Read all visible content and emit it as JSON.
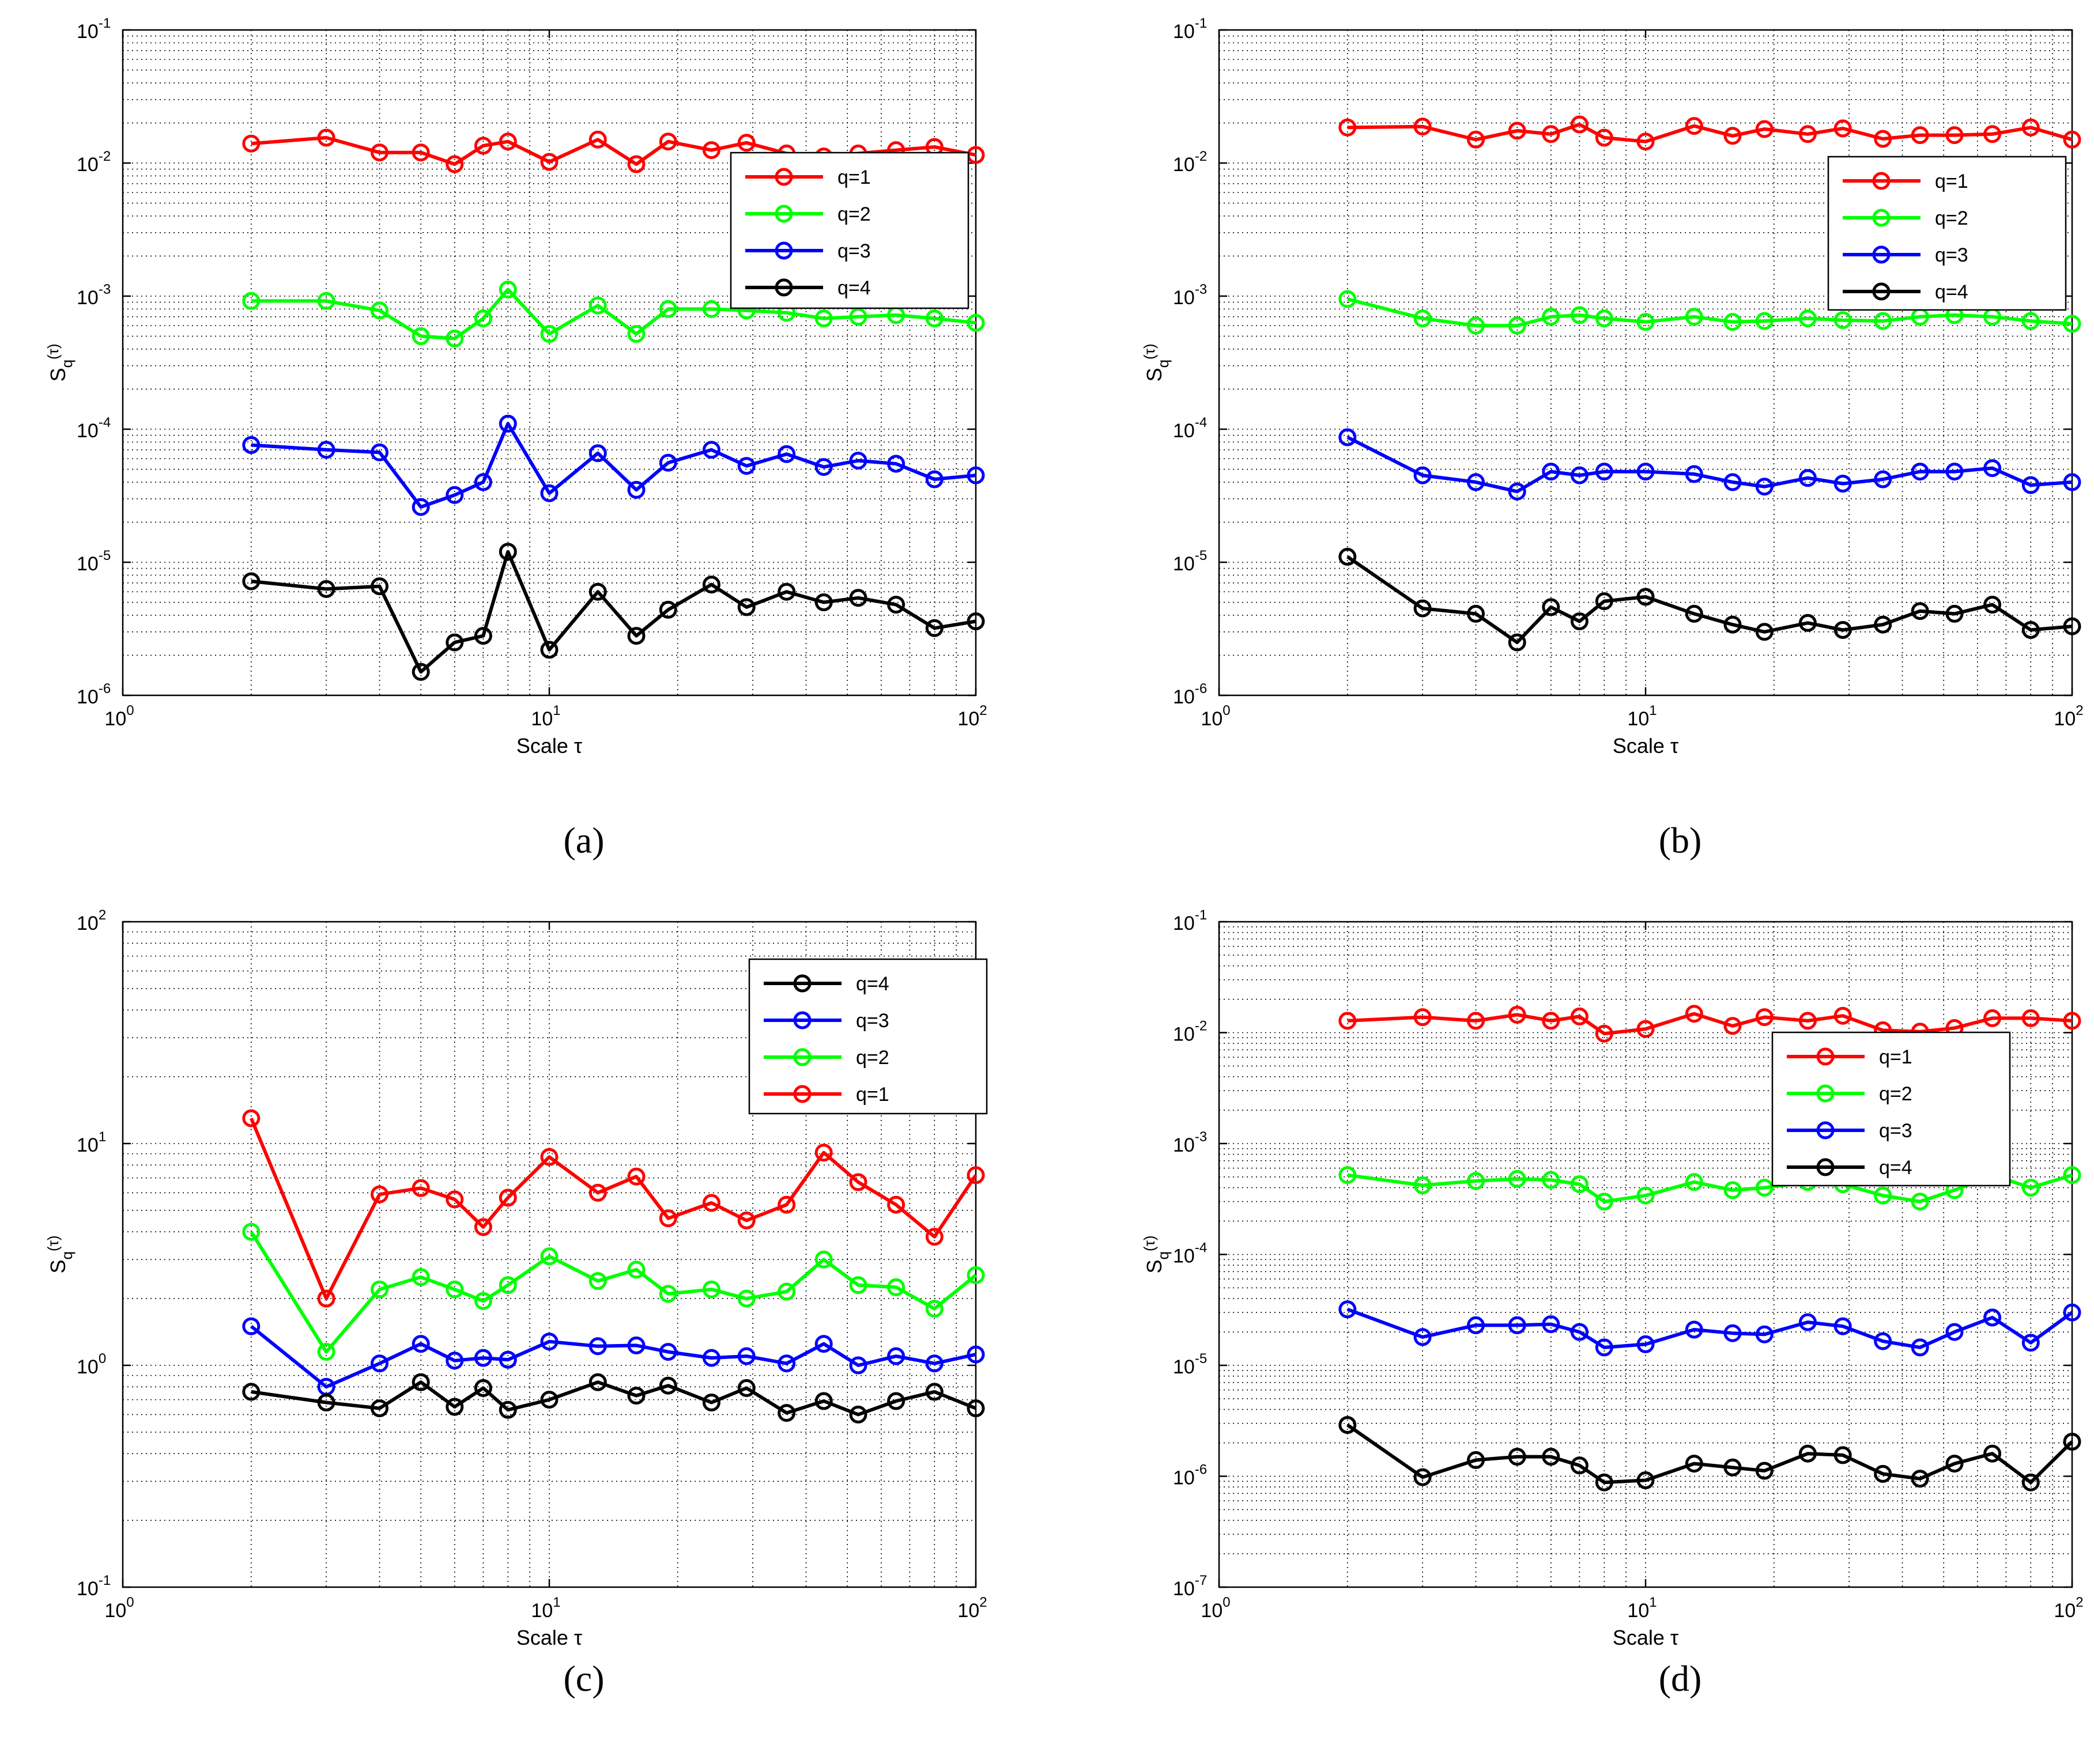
{
  "chart_data": [
    {
      "type": "line",
      "panel_label": "(a)",
      "xlabel": "Scale τ",
      "ylabel": "S",
      "ylabel_sub": "q",
      "ylabel_arg": "(τ)",
      "x_scale": "log",
      "y_scale": "log",
      "xlim": [
        1,
        100
      ],
      "ylim": [
        1e-06,
        0.1
      ],
      "x_ticks": [
        {
          "base": "10",
          "exp": "0"
        },
        {
          "base": "10",
          "exp": "1"
        },
        {
          "base": "10",
          "exp": "2"
        }
      ],
      "y_ticks": [
        {
          "base": "10",
          "exp": "-6"
        },
        {
          "base": "10",
          "exp": "-5"
        },
        {
          "base": "10",
          "exp": "-4"
        },
        {
          "base": "10",
          "exp": "-3"
        },
        {
          "base": "10",
          "exp": "-2"
        },
        {
          "base": "10",
          "exp": "-1"
        }
      ],
      "grid": true,
      "legend_position": "top-right",
      "legend_order": [
        "q=1",
        "q=2",
        "q=3",
        "q=4"
      ],
      "x": [
        2,
        3,
        4,
        5,
        6,
        7,
        8,
        10,
        13,
        16,
        19,
        24,
        29,
        36,
        44,
        53,
        65,
        80,
        100
      ],
      "series": [
        {
          "name": "q=1",
          "color": "#ff0000",
          "values": [
            0.014,
            0.0155,
            0.012,
            0.012,
            0.0098,
            0.0135,
            0.0145,
            0.0102,
            0.015,
            0.0098,
            0.0145,
            0.0125,
            0.0142,
            0.0118,
            0.0112,
            0.0118,
            0.0125,
            0.0132,
            0.0115
          ]
        },
        {
          "name": "q=2",
          "color": "#00ff00",
          "values": [
            0.00092,
            0.00092,
            0.00078,
            0.0005,
            0.00048,
            0.00068,
            0.00112,
            0.00052,
            0.00085,
            0.00052,
            0.0008,
            0.0008,
            0.00078,
            0.00075,
            0.00068,
            0.0007,
            0.00072,
            0.00068,
            0.00063
          ]
        },
        {
          "name": "q=3",
          "color": "#0000ff",
          "values": [
            7.6e-05,
            7e-05,
            6.7e-05,
            2.6e-05,
            3.2e-05,
            4e-05,
            0.00011,
            3.3e-05,
            6.6e-05,
            3.5e-05,
            5.6e-05,
            7e-05,
            5.3e-05,
            6.5e-05,
            5.2e-05,
            5.8e-05,
            5.5e-05,
            4.2e-05,
            4.5e-05
          ]
        },
        {
          "name": "q=4",
          "color": "#000000",
          "values": [
            7.2e-06,
            6.3e-06,
            6.6e-06,
            1.5e-06,
            2.5e-06,
            2.8e-06,
            1.2e-05,
            2.2e-06,
            6e-06,
            2.8e-06,
            4.4e-06,
            6.8e-06,
            4.6e-06,
            6e-06,
            5e-06,
            5.4e-06,
            4.8e-06,
            3.2e-06,
            3.6e-06
          ]
        }
      ]
    },
    {
      "type": "line",
      "panel_label": "(b)",
      "xlabel": "Scale τ",
      "ylabel": "S",
      "ylabel_sub": "q",
      "ylabel_arg": "(τ)",
      "x_scale": "log",
      "y_scale": "log",
      "xlim": [
        1,
        100
      ],
      "ylim": [
        1e-06,
        0.1
      ],
      "x_ticks": [
        {
          "base": "10",
          "exp": "0"
        },
        {
          "base": "10",
          "exp": "1"
        },
        {
          "base": "10",
          "exp": "2"
        }
      ],
      "y_ticks": [
        {
          "base": "10",
          "exp": "-6"
        },
        {
          "base": "10",
          "exp": "-5"
        },
        {
          "base": "10",
          "exp": "-4"
        },
        {
          "base": "10",
          "exp": "-3"
        },
        {
          "base": "10",
          "exp": "-2"
        },
        {
          "base": "10",
          "exp": "-1"
        }
      ],
      "grid": true,
      "legend_position": "top-right",
      "legend_order": [
        "q=1",
        "q=2",
        "q=3",
        "q=4"
      ],
      "x": [
        2,
        3,
        4,
        5,
        6,
        7,
        8,
        10,
        13,
        16,
        19,
        24,
        29,
        36,
        44,
        53,
        65,
        80,
        100
      ],
      "series": [
        {
          "name": "q=1",
          "color": "#ff0000",
          "values": [
            0.0185,
            0.0188,
            0.015,
            0.0175,
            0.0165,
            0.0195,
            0.0155,
            0.0145,
            0.019,
            0.016,
            0.018,
            0.0165,
            0.0182,
            0.0152,
            0.0162,
            0.0162,
            0.0165,
            0.0185,
            0.015
          ]
        },
        {
          "name": "q=2",
          "color": "#00ff00",
          "values": [
            0.00095,
            0.00068,
            0.0006,
            0.0006,
            0.0007,
            0.00072,
            0.00068,
            0.00064,
            0.0007,
            0.00064,
            0.00065,
            0.00068,
            0.00066,
            0.00065,
            0.0007,
            0.00072,
            0.0007,
            0.00065,
            0.00062
          ]
        },
        {
          "name": "q=3",
          "color": "#0000ff",
          "values": [
            8.7e-05,
            4.5e-05,
            4e-05,
            3.4e-05,
            4.8e-05,
            4.5e-05,
            4.8e-05,
            4.8e-05,
            4.6e-05,
            4e-05,
            3.7e-05,
            4.3e-05,
            3.9e-05,
            4.2e-05,
            4.8e-05,
            4.8e-05,
            5.1e-05,
            3.8e-05,
            4e-05
          ]
        },
        {
          "name": "q=4",
          "color": "#000000",
          "values": [
            1.1e-05,
            4.5e-06,
            4.1e-06,
            2.5e-06,
            4.6e-06,
            3.6e-06,
            5.1e-06,
            5.5e-06,
            4.1e-06,
            3.4e-06,
            3e-06,
            3.5e-06,
            3.1e-06,
            3.4e-06,
            4.3e-06,
            4.1e-06,
            4.8e-06,
            3.1e-06,
            3.3e-06
          ]
        }
      ]
    },
    {
      "type": "line",
      "panel_label": "(c)",
      "xlabel": "Scale τ",
      "ylabel": "S",
      "ylabel_sub": "q",
      "ylabel_arg": "(τ)",
      "x_scale": "log",
      "y_scale": "log",
      "xlim": [
        1,
        100
      ],
      "ylim": [
        0.1,
        100
      ],
      "x_ticks": [
        {
          "base": "10",
          "exp": "0"
        },
        {
          "base": "10",
          "exp": "1"
        },
        {
          "base": "10",
          "exp": "2"
        }
      ],
      "y_ticks": [
        {
          "base": "10",
          "exp": "-1"
        },
        {
          "base": "10",
          "exp": "0"
        },
        {
          "base": "10",
          "exp": "1"
        },
        {
          "base": "10",
          "exp": "2"
        }
      ],
      "grid": true,
      "legend_position": "top-right",
      "legend_order": [
        "q=4",
        "q=3",
        "q=2",
        "q=1"
      ],
      "x": [
        2,
        3,
        4,
        5,
        6,
        7,
        8,
        10,
        13,
        16,
        19,
        24,
        29,
        36,
        44,
        53,
        65,
        80,
        100
      ],
      "series": [
        {
          "name": "q=1",
          "color": "#ff0000",
          "values": [
            13.0,
            2.0,
            5.9,
            6.3,
            5.6,
            4.2,
            5.7,
            8.7,
            6.0,
            7.1,
            4.6,
            5.4,
            4.5,
            5.3,
            9.1,
            6.7,
            5.3,
            3.8,
            7.2
          ]
        },
        {
          "name": "q=2",
          "color": "#00ff00",
          "values": [
            4.0,
            1.15,
            2.2,
            2.5,
            2.2,
            1.95,
            2.3,
            3.1,
            2.4,
            2.7,
            2.1,
            2.2,
            2.0,
            2.15,
            3.0,
            2.3,
            2.25,
            1.8,
            2.55
          ]
        },
        {
          "name": "q=3",
          "color": "#0000ff",
          "values": [
            1.5,
            0.8,
            1.02,
            1.25,
            1.05,
            1.08,
            1.06,
            1.28,
            1.22,
            1.23,
            1.15,
            1.08,
            1.1,
            1.02,
            1.25,
            1.0,
            1.1,
            1.02,
            1.12
          ]
        },
        {
          "name": "q=4",
          "color": "#000000",
          "values": [
            0.76,
            0.68,
            0.64,
            0.84,
            0.65,
            0.79,
            0.63,
            0.7,
            0.84,
            0.73,
            0.81,
            0.68,
            0.79,
            0.61,
            0.69,
            0.6,
            0.69,
            0.76,
            0.64
          ]
        }
      ]
    },
    {
      "type": "line",
      "panel_label": "(d)",
      "xlabel": "Scale τ",
      "ylabel": "S",
      "ylabel_sub": "q",
      "ylabel_arg": "(τ)",
      "x_scale": "log",
      "y_scale": "log",
      "xlim": [
        1,
        100
      ],
      "ylim": [
        1e-07,
        0.1
      ],
      "x_ticks": [
        {
          "base": "10",
          "exp": "0"
        },
        {
          "base": "10",
          "exp": "1"
        },
        {
          "base": "10",
          "exp": "2"
        }
      ],
      "y_ticks": [
        {
          "base": "10",
          "exp": "-7"
        },
        {
          "base": "10",
          "exp": "-6"
        },
        {
          "base": "10",
          "exp": "-5"
        },
        {
          "base": "10",
          "exp": "-4"
        },
        {
          "base": "10",
          "exp": "-3"
        },
        {
          "base": "10",
          "exp": "-2"
        },
        {
          "base": "10",
          "exp": "-1"
        }
      ],
      "grid": true,
      "legend_position": "top-right",
      "legend_order": [
        "q=1",
        "q=2",
        "q=3",
        "q=4"
      ],
      "x": [
        2,
        3,
        4,
        5,
        6,
        7,
        8,
        10,
        13,
        16,
        19,
        24,
        29,
        36,
        44,
        53,
        65,
        80,
        100
      ],
      "series": [
        {
          "name": "q=1",
          "color": "#ff0000",
          "values": [
            0.0128,
            0.0138,
            0.0128,
            0.0145,
            0.0128,
            0.014,
            0.0098,
            0.0108,
            0.0148,
            0.0115,
            0.0138,
            0.0128,
            0.0142,
            0.0105,
            0.0102,
            0.011,
            0.0135,
            0.0135,
            0.0128
          ]
        },
        {
          "name": "q=2",
          "color": "#00ff00",
          "values": [
            0.00052,
            0.00042,
            0.00046,
            0.00048,
            0.00047,
            0.00043,
            0.0003,
            0.00034,
            0.00045,
            0.00038,
            0.0004,
            0.00045,
            0.00043,
            0.00034,
            0.0003,
            0.00038,
            0.00052,
            0.0004,
            0.00052
          ]
        },
        {
          "name": "q=3",
          "color": "#0000ff",
          "values": [
            3.2e-05,
            1.8e-05,
            2.3e-05,
            2.3e-05,
            2.35e-05,
            2e-05,
            1.45e-05,
            1.55e-05,
            2.1e-05,
            1.95e-05,
            1.9e-05,
            2.45e-05,
            2.25e-05,
            1.65e-05,
            1.45e-05,
            2e-05,
            2.7e-05,
            1.6e-05,
            3e-05
          ]
        },
        {
          "name": "q=4",
          "color": "#000000",
          "values": [
            2.9e-06,
            9.8e-07,
            1.4e-06,
            1.5e-06,
            1.5e-06,
            1.25e-06,
            8.8e-07,
            9.2e-07,
            1.3e-06,
            1.2e-06,
            1.12e-06,
            1.6e-06,
            1.55e-06,
            1.05e-06,
            9.5e-07,
            1.3e-06,
            1.6e-06,
            8.8e-07,
            2.05e-06
          ]
        }
      ]
    }
  ]
}
